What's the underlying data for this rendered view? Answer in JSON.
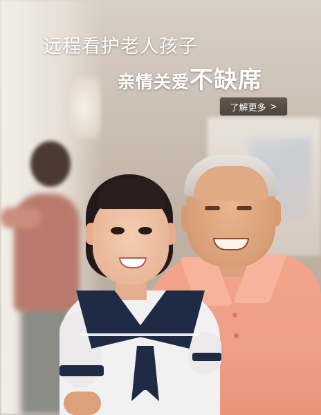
{
  "banner": {
    "headline_line1": "远程看护老人孩子",
    "headline_line2_lead": "亲情关爱",
    "headline_line2_emphasis": "不缺席",
    "more_button_label": "了解更多",
    "more_button_icon": "chevron-right-icon",
    "more_button_icon_glyph": ">",
    "colors": {
      "text": "#ffffff",
      "button_bg": "#463b35",
      "shirt_pink": "#ee9f86",
      "uniform_navy": "#1f2a45"
    }
  }
}
